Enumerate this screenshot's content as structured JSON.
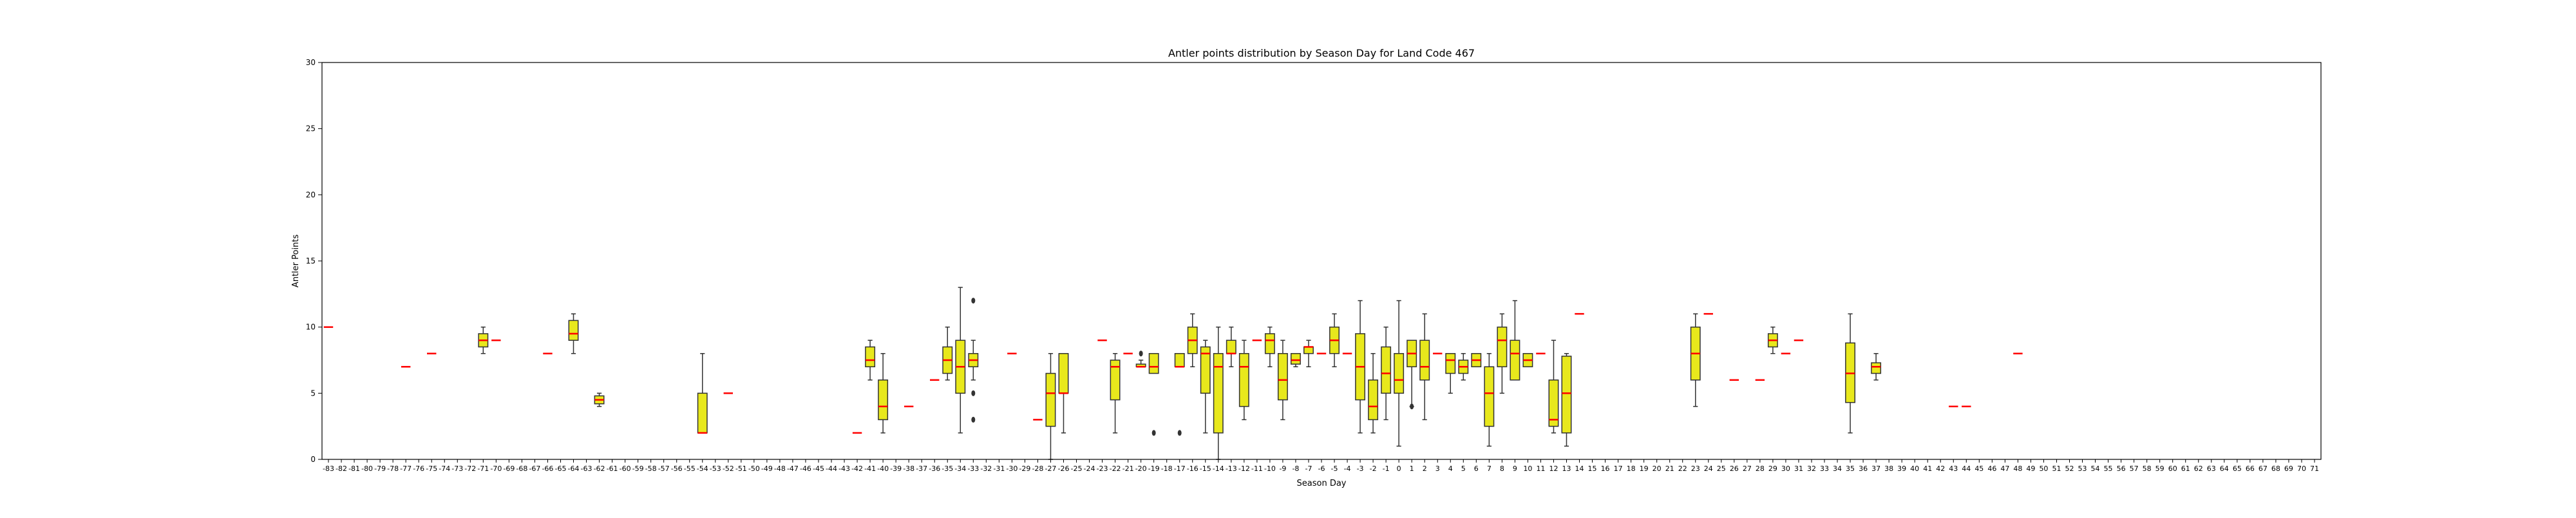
{
  "chart_data": {
    "type": "box",
    "title": "Antler points distribution by Season Day for Land Code 467",
    "xlabel": "Season Day",
    "ylabel": "Antler Points",
    "ylim": [
      0,
      30
    ],
    "yticks": [
      0,
      5,
      10,
      15,
      20,
      25,
      30
    ],
    "xcategories": [
      -83,
      -82,
      -81,
      -80,
      -79,
      -78,
      -77,
      -76,
      -75,
      -74,
      -73,
      -72,
      -71,
      -70,
      -69,
      -68,
      -67,
      -66,
      -65,
      -64,
      -63,
      -62,
      -61,
      -60,
      -59,
      -58,
      -57,
      -56,
      -55,
      -54,
      -53,
      -52,
      -51,
      -50,
      -49,
      -48,
      -47,
      -46,
      -45,
      -44,
      -43,
      -42,
      -41,
      -40,
      -39,
      -38,
      -37,
      -36,
      -35,
      -34,
      -33,
      -32,
      -31,
      -30,
      -29,
      -28,
      -27,
      -26,
      -25,
      -24,
      -23,
      -22,
      -21,
      -20,
      -19,
      -18,
      -17,
      -16,
      -15,
      -14,
      -13,
      -12,
      -11,
      -10,
      -9,
      -8,
      -7,
      -6,
      -5,
      -4,
      -3,
      -2,
      -1,
      0,
      1,
      2,
      3,
      4,
      5,
      6,
      7,
      8,
      9,
      10,
      11,
      12,
      13,
      14,
      15,
      16,
      17,
      18,
      19,
      20,
      21,
      22,
      23,
      24,
      25,
      26,
      27,
      28,
      29,
      30,
      31,
      32,
      33,
      34,
      35,
      36,
      37,
      38,
      39,
      40,
      41,
      42,
      43,
      44,
      45,
      46,
      47,
      48,
      49,
      50,
      51,
      52,
      53,
      54,
      55,
      56,
      57,
      58,
      59,
      60,
      61,
      62,
      63,
      64,
      65,
      66,
      67,
      68,
      69,
      70,
      71
    ],
    "box_color": "#e8e81c",
    "median_color": "#ff0000",
    "boxes": [
      {
        "day": -83,
        "min": 10,
        "q1": 10,
        "median": 10,
        "q3": 10,
        "max": 10
      },
      {
        "day": -77,
        "min": 7,
        "q1": 7,
        "median": 7,
        "q3": 7,
        "max": 7
      },
      {
        "day": -75,
        "min": 8,
        "q1": 8,
        "median": 8,
        "q3": 8,
        "max": 8
      },
      {
        "day": -71,
        "min": 8,
        "q1": 8.5,
        "median": 9,
        "q3": 9.5,
        "max": 10
      },
      {
        "day": -70,
        "min": 9,
        "q1": 9,
        "median": 9,
        "q3": 9,
        "max": 9
      },
      {
        "day": -66,
        "min": 8,
        "q1": 8,
        "median": 8,
        "q3": 8,
        "max": 8
      },
      {
        "day": -64,
        "min": 8,
        "q1": 9,
        "median": 9.5,
        "q3": 10.5,
        "max": 11
      },
      {
        "day": -62,
        "min": 4,
        "q1": 4.2,
        "median": 4.5,
        "q3": 4.8,
        "max": 5
      },
      {
        "day": -54,
        "min": 2,
        "q1": 2,
        "median": 2,
        "q3": 5,
        "max": 8
      },
      {
        "day": -52,
        "min": 5,
        "q1": 5,
        "median": 5,
        "q3": 5,
        "max": 5
      },
      {
        "day": -42,
        "min": 2,
        "q1": 2,
        "median": 2,
        "q3": 2,
        "max": 2
      },
      {
        "day": -41,
        "min": 6,
        "q1": 7,
        "median": 7.5,
        "q3": 8.5,
        "max": 9
      },
      {
        "day": -40,
        "min": 2,
        "q1": 3,
        "median": 4,
        "q3": 6,
        "max": 8
      },
      {
        "day": -38,
        "min": 4,
        "q1": 4,
        "median": 4,
        "q3": 4,
        "max": 4
      },
      {
        "day": -36,
        "min": 6,
        "q1": 6,
        "median": 6,
        "q3": 6,
        "max": 6
      },
      {
        "day": -35,
        "min": 6,
        "q1": 6.5,
        "median": 7.5,
        "q3": 8.5,
        "max": 10
      },
      {
        "day": -34,
        "min": 2,
        "q1": 5,
        "median": 7,
        "q3": 9,
        "max": 13
      },
      {
        "day": -33,
        "min": 6,
        "q1": 7,
        "median": 7.5,
        "q3": 8,
        "max": 9,
        "outliers": [
          12,
          5,
          3
        ]
      },
      {
        "day": -30,
        "min": 8,
        "q1": 8,
        "median": 8,
        "q3": 8,
        "max": 8
      },
      {
        "day": -28,
        "min": 3,
        "q1": 3,
        "median": 3,
        "q3": 3,
        "max": 3
      },
      {
        "day": -27,
        "min": 0,
        "q1": 2.5,
        "median": 5,
        "q3": 6.5,
        "max": 8
      },
      {
        "day": -26,
        "min": 2,
        "q1": 5,
        "median": 5,
        "q3": 8,
        "max": 8
      },
      {
        "day": -23,
        "min": 9,
        "q1": 9,
        "median": 9,
        "q3": 9,
        "max": 9
      },
      {
        "day": -22,
        "min": 2,
        "q1": 4.5,
        "median": 7,
        "q3": 7.5,
        "max": 8
      },
      {
        "day": -21,
        "min": 8,
        "q1": 8,
        "median": 8,
        "q3": 8,
        "max": 8
      },
      {
        "day": -20,
        "min": 7,
        "q1": 7,
        "median": 7,
        "q3": 7.2,
        "max": 7.5,
        "outliers": [
          8
        ]
      },
      {
        "day": -19,
        "min": 6.5,
        "q1": 6.5,
        "median": 7,
        "q3": 8,
        "max": 8,
        "outliers": [
          2
        ]
      },
      {
        "day": -17,
        "min": 7,
        "q1": 7,
        "median": 7,
        "q3": 8,
        "max": 8,
        "outliers": [
          2
        ]
      },
      {
        "day": -16,
        "min": 7,
        "q1": 8,
        "median": 9,
        "q3": 10,
        "max": 11
      },
      {
        "day": -15,
        "min": 2,
        "q1": 5,
        "median": 8,
        "q3": 8.5,
        "max": 9
      },
      {
        "day": -14,
        "min": 0,
        "q1": 2,
        "median": 7,
        "q3": 8,
        "max": 10
      },
      {
        "day": -13,
        "min": 7,
        "q1": 8,
        "median": 8,
        "q3": 9,
        "max": 10
      },
      {
        "day": -12,
        "min": 3,
        "q1": 4,
        "median": 7,
        "q3": 8,
        "max": 9
      },
      {
        "day": -11,
        "min": 9,
        "q1": 9,
        "median": 9,
        "q3": 9,
        "max": 9
      },
      {
        "day": -10,
        "min": 7,
        "q1": 8,
        "median": 9,
        "q3": 9.5,
        "max": 10
      },
      {
        "day": -9,
        "min": 3,
        "q1": 4.5,
        "median": 6,
        "q3": 8,
        "max": 9
      },
      {
        "day": -8,
        "min": 7,
        "q1": 7.2,
        "median": 7.5,
        "q3": 8,
        "max": 8
      },
      {
        "day": -7,
        "min": 7,
        "q1": 8,
        "median": 8.5,
        "q3": 8.5,
        "max": 9
      },
      {
        "day": -6,
        "min": 8,
        "q1": 8,
        "median": 8,
        "q3": 8,
        "max": 8
      },
      {
        "day": -5,
        "min": 7,
        "q1": 8,
        "median": 9,
        "q3": 10,
        "max": 11
      },
      {
        "day": -4,
        "min": 8,
        "q1": 8,
        "median": 8,
        "q3": 8,
        "max": 8
      },
      {
        "day": -3,
        "min": 2,
        "q1": 4.5,
        "median": 7,
        "q3": 9.5,
        "max": 12
      },
      {
        "day": -2,
        "min": 2,
        "q1": 3,
        "median": 4,
        "q3": 6,
        "max": 8
      },
      {
        "day": -1,
        "min": 3,
        "q1": 5,
        "median": 6.5,
        "q3": 8.5,
        "max": 10
      },
      {
        "day": 0,
        "min": 1,
        "q1": 5,
        "median": 6,
        "q3": 8,
        "max": 12
      },
      {
        "day": 1,
        "min": 4,
        "q1": 7,
        "median": 8,
        "q3": 9,
        "max": 9,
        "outliers": [
          4
        ]
      },
      {
        "day": 2,
        "min": 3,
        "q1": 6,
        "median": 7,
        "q3": 9,
        "max": 11
      },
      {
        "day": 3,
        "min": 8,
        "q1": 8,
        "median": 8,
        "q3": 8,
        "max": 8
      },
      {
        "day": 4,
        "min": 5,
        "q1": 6.5,
        "median": 7.5,
        "q3": 8,
        "max": 8
      },
      {
        "day": 5,
        "min": 6,
        "q1": 6.5,
        "median": 7,
        "q3": 7.5,
        "max": 8
      },
      {
        "day": 6,
        "min": 7,
        "q1": 7,
        "median": 7.5,
        "q3": 8,
        "max": 8
      },
      {
        "day": 7,
        "min": 1,
        "q1": 2.5,
        "median": 5,
        "q3": 7,
        "max": 8
      },
      {
        "day": 8,
        "min": 5,
        "q1": 7,
        "median": 9,
        "q3": 10,
        "max": 11
      },
      {
        "day": 9,
        "min": 6,
        "q1": 6,
        "median": 8,
        "q3": 9,
        "max": 12
      },
      {
        "day": 10,
        "min": 7,
        "q1": 7,
        "median": 7.5,
        "q3": 8,
        "max": 8
      },
      {
        "day": 11,
        "min": 8,
        "q1": 8,
        "median": 8,
        "q3": 8,
        "max": 8
      },
      {
        "day": 12,
        "min": 2,
        "q1": 2.5,
        "median": 3,
        "q3": 6,
        "max": 9
      },
      {
        "day": 13,
        "min": 1,
        "q1": 2,
        "median": 5,
        "q3": 7.8,
        "max": 8
      },
      {
        "day": 14,
        "min": 11,
        "q1": 11,
        "median": 11,
        "q3": 11,
        "max": 11
      },
      {
        "day": 23,
        "min": 4,
        "q1": 6,
        "median": 8,
        "q3": 10,
        "max": 11
      },
      {
        "day": 24,
        "min": 11,
        "q1": 11,
        "median": 11,
        "q3": 11,
        "max": 11
      },
      {
        "day": 26,
        "min": 6,
        "q1": 6,
        "median": 6,
        "q3": 6,
        "max": 6
      },
      {
        "day": 28,
        "min": 6,
        "q1": 6,
        "median": 6,
        "q3": 6,
        "max": 6
      },
      {
        "day": 29,
        "min": 8,
        "q1": 8.5,
        "median": 9,
        "q3": 9.5,
        "max": 10
      },
      {
        "day": 30,
        "min": 8,
        "q1": 8,
        "median": 8,
        "q3": 8,
        "max": 8
      },
      {
        "day": 31,
        "min": 9,
        "q1": 9,
        "median": 9,
        "q3": 9,
        "max": 9
      },
      {
        "day": 35,
        "min": 2,
        "q1": 4.3,
        "median": 6.5,
        "q3": 8.8,
        "max": 11
      },
      {
        "day": 37,
        "min": 6,
        "q1": 6.5,
        "median": 7,
        "q3": 7.3,
        "max": 8
      },
      {
        "day": 43,
        "min": 4,
        "q1": 4,
        "median": 4,
        "q3": 4,
        "max": 4
      },
      {
        "day": 44,
        "min": 4,
        "q1": 4,
        "median": 4,
        "q3": 4,
        "max": 4
      },
      {
        "day": 48,
        "min": 8,
        "q1": 8,
        "median": 8,
        "q3": 8,
        "max": 8
      }
    ]
  }
}
